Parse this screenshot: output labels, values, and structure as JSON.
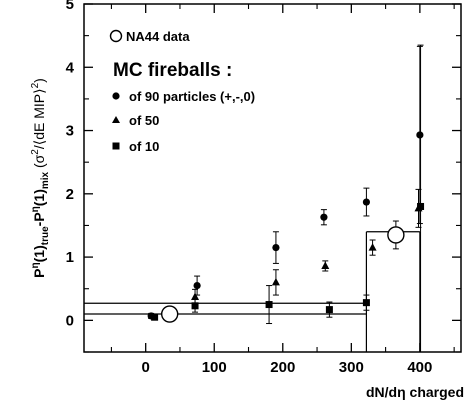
{
  "chart_data": {
    "type": "scatter",
    "xlim": [
      -90,
      460
    ],
    "ylim": [
      -0.5,
      5
    ],
    "x_ticks": [
      0,
      100,
      200,
      300,
      400
    ],
    "y_ticks": [
      0,
      1,
      2,
      3,
      4,
      5
    ],
    "x_tick_labels": [
      "0",
      "100",
      "200",
      "300",
      "400"
    ],
    "y_tick_labels": [
      "0",
      "1",
      "2",
      "3",
      "4",
      "5"
    ],
    "xlabel": "dN/dη charged",
    "ylabel_parts": {
      "a": "P",
      "a_sup": "η",
      "b": "(1)",
      "b_sub": "true",
      "c": "-P",
      "c_sup": "η",
      "d": "(1)",
      "d_sub": "mix",
      "e": " (σ",
      "e_sup": "2",
      "f": "/⟨dE MIP⟩",
      "f_sup": "2",
      "g": ")"
    },
    "legend": {
      "data_label": "NA44 data",
      "header": "MC fireballs :",
      "series_labels": [
        "of 90 particles (+,-,0)",
        "of 50",
        "of 10"
      ]
    },
    "series": [
      {
        "name": "NA44 data",
        "marker": "open-circle",
        "points": [
          {
            "x": 35,
            "y": 0.1,
            "err": 0
          },
          {
            "x": 365,
            "y": 1.35,
            "err": 0.22
          }
        ]
      },
      {
        "name": "of 90 particles (+,-,0)",
        "marker": "filled-circle",
        "points": [
          {
            "x": 8,
            "y": 0.07,
            "err": 0.04
          },
          {
            "x": 75,
            "y": 0.55,
            "err": 0.15
          },
          {
            "x": 190,
            "y": 1.15,
            "err": 0.25
          },
          {
            "x": 260,
            "y": 1.63,
            "err": 0.12
          },
          {
            "x": 322,
            "y": 1.87,
            "err": 0.22
          },
          {
            "x": 400,
            "y": 2.93,
            "err": 1.4
          }
        ]
      },
      {
        "name": "of 50",
        "marker": "filled-triangle",
        "points": [
          {
            "x": 72,
            "y": 0.37,
            "err": 0.12
          },
          {
            "x": 190,
            "y": 0.6,
            "err": 0.2
          },
          {
            "x": 262,
            "y": 0.86,
            "err": 0.08
          },
          {
            "x": 331,
            "y": 1.15,
            "err": 0.12
          },
          {
            "x": 398,
            "y": 1.77,
            "err": 0.3
          }
        ]
      },
      {
        "name": "of 10",
        "marker": "filled-square",
        "points": [
          {
            "x": 13,
            "y": 0.05,
            "err": 0.03
          },
          {
            "x": 72,
            "y": 0.23,
            "err": 0.1
          },
          {
            "x": 180,
            "y": 0.25,
            "err": 0.3
          },
          {
            "x": 268,
            "y": 0.17,
            "err": 0.12
          },
          {
            "x": 322,
            "y": 0.28,
            "err": 0.12
          },
          {
            "x": 401,
            "y": 1.8,
            "err": 2.55
          }
        ]
      }
    ],
    "histogram": {
      "lines": [
        {
          "y": 0.1,
          "x0": -90,
          "x1": 322
        },
        {
          "y": 0.27,
          "x0": -90,
          "x1": 322
        },
        {
          "y": 1.4,
          "x0": 322,
          "x1": 400
        }
      ],
      "verticals": [
        {
          "x": 322,
          "y0": -0.5,
          "y1": 1.4
        },
        {
          "x": 400,
          "y0": -0.5,
          "y1": 1.4
        }
      ]
    }
  }
}
